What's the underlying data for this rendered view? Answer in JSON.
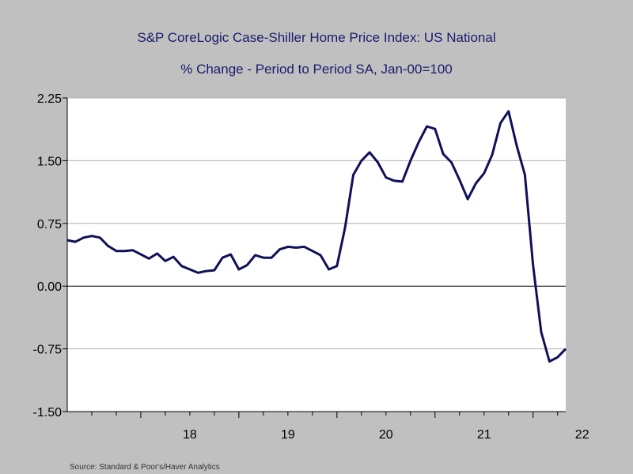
{
  "chart_data": {
    "type": "line",
    "title": "S&P CoreLogic Case-Shiller Home Price Index: US National",
    "subtitle": "% Change - Period to Period     SA, Jan-00=100",
    "source": "Source:  Standard & Poor's/Haver Analytics",
    "ylim": [
      -1.5,
      2.25
    ],
    "yticks": [
      2.25,
      1.5,
      0.75,
      0.0,
      -0.75,
      -1.5
    ],
    "ytick_labels": [
      "2.25",
      "1.50",
      "0.75",
      "0.00",
      "-0.75",
      "-1.50"
    ],
    "xlim": [
      2017.25,
      2022.333
    ],
    "xtick_labels": [
      {
        "label": "18",
        "x": 2018.0
      },
      {
        "label": "19",
        "x": 2019.0
      },
      {
        "label": "20",
        "x": 2020.0
      },
      {
        "label": "21",
        "x": 2021.0
      },
      {
        "label": "22",
        "x": 2022.0
      }
    ],
    "grid": true,
    "zero_line": true,
    "colors": {
      "line": "#10105a",
      "grid": "#b0b0b0",
      "title": "#1a1a6e"
    },
    "series": [
      {
        "x": [
          2017.25,
          2017.333,
          2017.417,
          2017.5,
          2017.583,
          2017.667,
          2017.75,
          2017.833,
          2017.917,
          2018.0,
          2018.083,
          2018.167,
          2018.25,
          2018.333,
          2018.417,
          2018.5,
          2018.583,
          2018.667,
          2018.75,
          2018.833,
          2018.917,
          2019.0,
          2019.083,
          2019.167,
          2019.25,
          2019.333,
          2019.417,
          2019.5,
          2019.583,
          2019.667,
          2019.75,
          2019.833,
          2019.917,
          2020.0,
          2020.083,
          2020.167,
          2020.25,
          2020.333,
          2020.417,
          2020.5,
          2020.583,
          2020.667,
          2020.75,
          2020.833,
          2020.917,
          2021.0,
          2021.083,
          2021.167,
          2021.25,
          2021.333,
          2021.417,
          2021.5,
          2021.583,
          2021.667,
          2021.75,
          2021.833,
          2021.917,
          2022.0,
          2022.083,
          2022.167,
          2022.25,
          2022.333
        ],
        "values": [
          0.55,
          0.53,
          0.58,
          0.6,
          0.58,
          0.48,
          0.42,
          0.42,
          0.43,
          0.38,
          0.33,
          0.39,
          0.3,
          0.35,
          0.24,
          0.2,
          0.16,
          0.18,
          0.19,
          0.34,
          0.38,
          0.2,
          0.25,
          0.37,
          0.34,
          0.34,
          0.44,
          0.47,
          0.46,
          0.47,
          0.42,
          0.37,
          0.2,
          0.24,
          0.7,
          1.33,
          1.5,
          1.6,
          1.48,
          1.3,
          1.26,
          1.25,
          1.5,
          1.72,
          1.91,
          1.88,
          1.58,
          1.48,
          1.27,
          1.04,
          1.23,
          1.35,
          1.57,
          1.95,
          2.09,
          1.68,
          1.33,
          0.25,
          -0.55,
          -0.9,
          -0.85,
          -0.75
        ]
      }
    ]
  }
}
